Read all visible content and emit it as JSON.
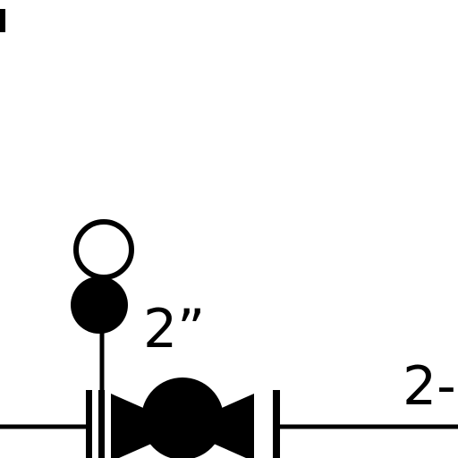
{
  "diagram": {
    "labels": {
      "size_label": "2”",
      "pipe_label": "2-"
    },
    "symbols": {
      "indicator_open": "open-circle-icon",
      "indicator_filled": "filled-circle-icon",
      "valve": "gate-valve-icon",
      "flange": "flange-icon"
    },
    "colors": {
      "stroke": "#000000",
      "fill": "#000000",
      "background": "#ffffff"
    }
  }
}
